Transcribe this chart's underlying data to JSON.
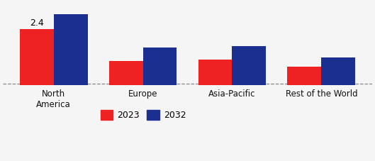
{
  "categories": [
    "North\nAmerica",
    "Europe",
    "Asia-Pacific",
    "Rest of the World"
  ],
  "values_2023": [
    2.05,
    0.88,
    0.93,
    0.68
  ],
  "values_2032": [
    2.58,
    1.38,
    1.42,
    1.02
  ],
  "annotation": "2.4",
  "color_2023": "#ee2222",
  "color_2032": "#1a2f8f",
  "legend_labels": [
    "2023",
    "2032"
  ],
  "bar_width": 0.38,
  "background_color": "#f5f5f5",
  "ylim": [
    0,
    3.0
  ],
  "dashed_line_y": 0.04,
  "annotation_fontsize": 9,
  "ylabel_fontsize": 7.5,
  "xlabel_fontsize": 8.5,
  "legend_fontsize": 9
}
